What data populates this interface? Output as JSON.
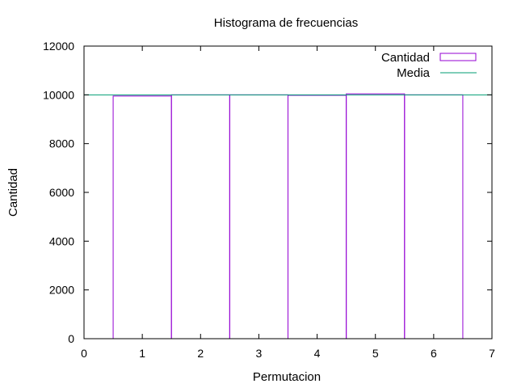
{
  "chart_data": {
    "type": "bar",
    "title": "Histograma de frecuencias",
    "xlabel": "Permutacion",
    "ylabel": "Cantidad",
    "xlim": [
      0,
      7
    ],
    "ylim": [
      0,
      12000
    ],
    "xticks": [
      0,
      1,
      2,
      3,
      4,
      5,
      6,
      7
    ],
    "yticks": [
      0,
      2000,
      4000,
      6000,
      8000,
      10000,
      12000
    ],
    "categories": [
      1,
      2,
      3,
      4,
      5,
      6
    ],
    "series": [
      {
        "name": "Cantidad",
        "values": [
          9950,
          10000,
          10000,
          9980,
          10040,
          10000
        ],
        "color": "#9400d3"
      }
    ],
    "reference_line": {
      "name": "Media",
      "value": 10000,
      "color": "#009e73"
    },
    "legend_position": "top-right",
    "grid": false
  }
}
